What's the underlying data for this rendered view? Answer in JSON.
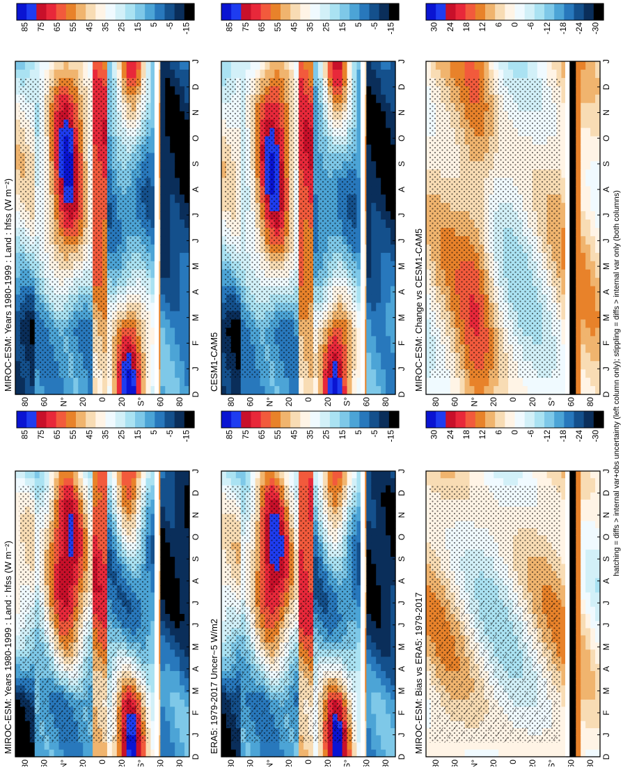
{
  "figure_caption": "hatching = diffs > internal var+obs uncertainty (left column only); stippling = diffs > internal var only (both columns)",
  "colorbar_abs": {
    "labels": [
      "85",
      "75",
      "65",
      "55",
      "45",
      "35",
      "25",
      "15",
      "5",
      "-5",
      "-15"
    ],
    "colors": [
      "#0a14d2",
      "#1e3cf0",
      "#c8102a",
      "#e8283a",
      "#f25a3c",
      "#e8822a",
      "#f0b46e",
      "#f8dcb4",
      "#fff4e6",
      "#f0faff",
      "#d2f0f8",
      "#aae2f2",
      "#7ec8e8",
      "#4ca4d6",
      "#2878bc",
      "#14508c",
      "#0a2e5a",
      "#000000"
    ]
  },
  "colorbar_diff": {
    "labels": [
      "30",
      "24",
      "18",
      "12",
      "6",
      "0",
      "-6",
      "-12",
      "-18",
      "-24",
      "-30"
    ],
    "colors": [
      "#0a14d2",
      "#1e3cf0",
      "#c8102a",
      "#e8283a",
      "#f25a3c",
      "#e8822a",
      "#f0b46e",
      "#f8dcb4",
      "#fff4e6",
      "#f0faff",
      "#d2f0f8",
      "#aae2f2",
      "#7ec8e8",
      "#4ca4d6",
      "#2878bc",
      "#14508c",
      "#0a2e5a",
      "#000000"
    ]
  },
  "chart_data": [
    {
      "type": "heatmap",
      "title": "MIROC-ESM: Years 1980-1999 : Land : hfss (W m⁻²)",
      "x_tick_labels": [
        "D",
        "J",
        "F",
        "M",
        "A",
        "M",
        "J",
        "J",
        "A",
        "S",
        "O",
        "N",
        "D",
        "J"
      ],
      "y_tick_labels": [
        "80",
        "60",
        "N°",
        "20",
        "0",
        "20",
        "S°",
        "60",
        "80"
      ],
      "colorbar": "abs",
      "hatching": true,
      "stippling": true
    },
    {
      "type": "heatmap",
      "title": "ERA5: 1979-2017 Uncer~5 W/m2",
      "x_tick_labels": [
        "D",
        "J",
        "F",
        "M",
        "A",
        "M",
        "J",
        "J",
        "A",
        "S",
        "O",
        "N",
        "D",
        "J"
      ],
      "y_tick_labels": [
        "80",
        "60",
        "N°",
        "20",
        "0",
        "20",
        "S°",
        "60",
        "80"
      ],
      "colorbar": "abs",
      "hatching": true,
      "stippling": true
    },
    {
      "type": "heatmap",
      "title": "MIROC-ESM: Bias vs ERA5: 1979-2017",
      "x_tick_labels": [
        "D",
        "J",
        "F",
        "M",
        "A",
        "M",
        "J",
        "J",
        "A",
        "S",
        "O",
        "N",
        "D",
        "J"
      ],
      "y_tick_labels": [
        "80",
        "60",
        "N°",
        "20",
        "0",
        "20",
        "S°",
        "60",
        "80"
      ],
      "colorbar": "diff",
      "hatching": true,
      "stippling": true
    },
    {
      "type": "heatmap",
      "title": "MIROC-ESM: Years 1980-1999 : Land : hfss (W m⁻²)",
      "x_tick_labels": [
        "D",
        "J",
        "F",
        "M",
        "A",
        "M",
        "J",
        "J",
        "A",
        "S",
        "O",
        "N",
        "D",
        "J"
      ],
      "y_tick_labels": [
        "80",
        "60",
        "N°",
        "20",
        "0",
        "20",
        "S°",
        "60",
        "80"
      ],
      "colorbar": "abs",
      "hatching": false,
      "stippling": true
    },
    {
      "type": "heatmap",
      "title": "CESM1-CAM5",
      "x_tick_labels": [
        "D",
        "J",
        "F",
        "M",
        "A",
        "M",
        "J",
        "J",
        "A",
        "S",
        "O",
        "N",
        "D",
        "J"
      ],
      "y_tick_labels": [
        "80",
        "60",
        "N°",
        "20",
        "0",
        "20",
        "S°",
        "60",
        "80"
      ],
      "colorbar": "abs",
      "hatching": false,
      "stippling": true
    },
    {
      "type": "heatmap",
      "title": "MIROC-ESM: Change vs CESM1-CAM5",
      "x_tick_labels": [
        "D",
        "J",
        "F",
        "M",
        "A",
        "M",
        "J",
        "J",
        "A",
        "S",
        "O",
        "N",
        "D",
        "J"
      ],
      "y_tick_labels": [
        "80",
        "60",
        "N°",
        "20",
        "0",
        "20",
        "S°",
        "60",
        "80"
      ],
      "colorbar": "diff",
      "hatching": false,
      "stippling": true
    }
  ]
}
